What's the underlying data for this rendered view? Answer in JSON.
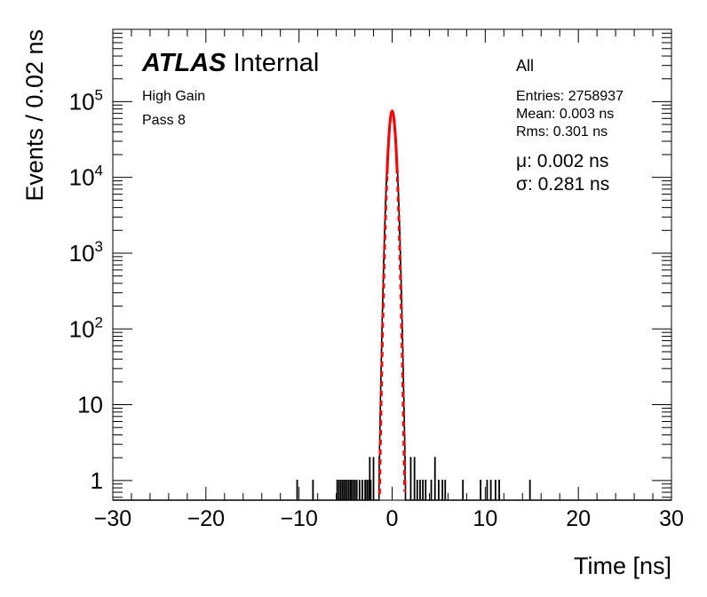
{
  "chart_data": {
    "type": "histogram",
    "xlabel": "Time [ns]",
    "ylabel": "Events / 0.02 ns",
    "xlim": [
      -30,
      30
    ],
    "ylim": [
      0.55,
      900000
    ],
    "y_log_scale": true,
    "x_ticks": [
      "−30",
      "−20",
      "−10",
      "0",
      "10",
      "20",
      "30"
    ],
    "y_ticks": [
      "1",
      "10",
      "10^2",
      "10^3",
      "10^4",
      "10^5"
    ],
    "labels": {
      "experiment": "ATLAS",
      "status": "Internal",
      "line1": "High Gain",
      "line2": "Pass 8",
      "selection": "All"
    },
    "stats": {
      "entries": "Entries: 2758937",
      "mean": "Mean: 0.003 ns",
      "rms": "Rms: 0.301 ns"
    },
    "fit": {
      "mu_label": "μ: 0.002 ns",
      "sigma_label": "σ: 0.281 ns",
      "mu": 0.002,
      "sigma": 0.281,
      "peak": 75000,
      "range": [
        -1.4,
        1.4
      ],
      "color": "#ff0000"
    },
    "histogram": {
      "bin_width": 0.02,
      "core_mean": 0.003,
      "core_sigma": 0.3,
      "peak": 75000,
      "line_color": "#000000",
      "single_events": [
        -10.2,
        -8.5,
        -5.9,
        -5.7,
        -5.5,
        -5.3,
        -5.1,
        -4.9,
        -4.7,
        -4.5,
        -4.4,
        -4.2,
        -4.0,
        -3.8,
        -3.5,
        -3.2,
        -2.9,
        -2.7,
        -2.5,
        -2.3,
        2.0,
        2.4,
        2.7,
        3.0,
        3.3,
        3.6,
        4.2,
        5.0,
        5.4,
        5.7,
        7.6,
        9.5,
        10.2,
        10.6,
        11.1,
        11.5,
        14.8
      ],
      "double_events": [
        -2.4,
        -2.0,
        2.0,
        2.4,
        4.6
      ]
    }
  }
}
